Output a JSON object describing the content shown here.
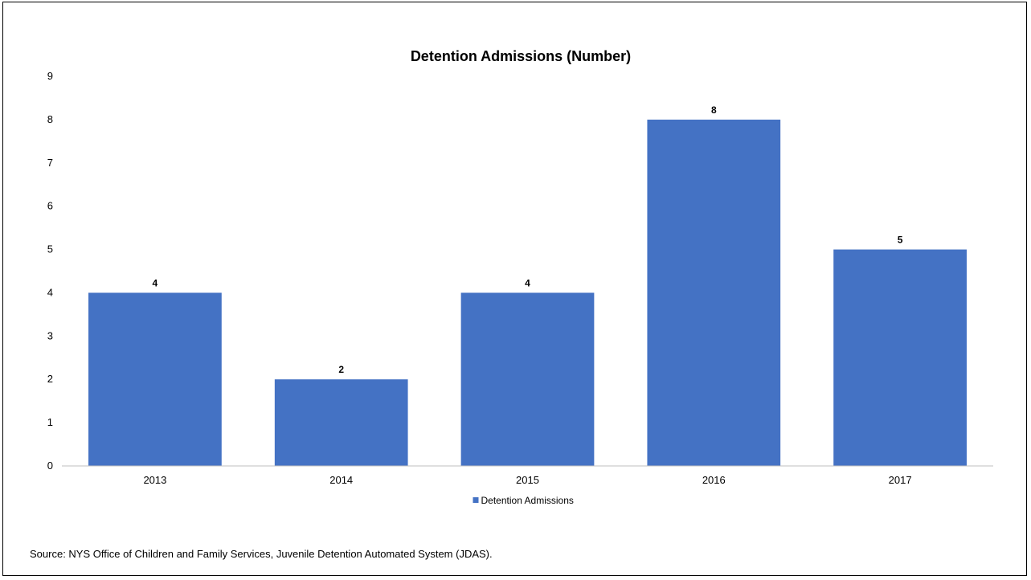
{
  "chart_data": {
    "type": "bar",
    "title": "Detention Admissions (Number)",
    "categories": [
      "2013",
      "2014",
      "2015",
      "2016",
      "2017"
    ],
    "series": [
      {
        "name": "Detention Admissions",
        "values": [
          4,
          2,
          4,
          8,
          5
        ]
      }
    ],
    "xlabel": "",
    "ylabel": "",
    "ylim": [
      0,
      9
    ],
    "yticks": [
      "0",
      "1",
      "2",
      "3",
      "4",
      "5",
      "6",
      "7",
      "8",
      "9"
    ],
    "data_labels": [
      "4",
      "2",
      "4",
      "8",
      "5"
    ],
    "grid": false,
    "legend_position": "bottom",
    "colors": {
      "bar": "#4472c4",
      "axis": "#bfbfbf",
      "border": "#000000"
    }
  },
  "source_note": "Source: NYS Office of Children and Family Services, Juvenile Detention Automated System (JDAS)."
}
